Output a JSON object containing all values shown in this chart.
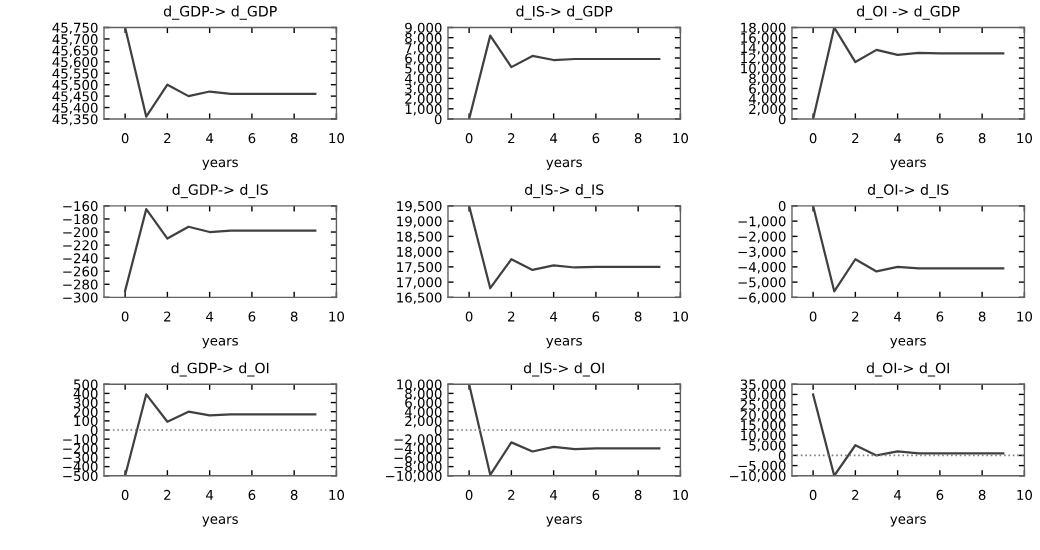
{
  "chart_data": [
    {
      "type": "line",
      "title": "d_GDP-> d_GDP",
      "xlabel": "years",
      "x": [
        0,
        1,
        2,
        3,
        4,
        5,
        6,
        7,
        8,
        9
      ],
      "values": [
        45750,
        45360,
        45500,
        45450,
        45470,
        45460,
        45460,
        45460,
        45460,
        45460
      ],
      "color": "#404040",
      "xlim": [
        -1,
        10
      ],
      "xticks": [
        0,
        2,
        4,
        6,
        8,
        10
      ],
      "ylim": [
        45350,
        45750
      ],
      "yticks": [
        {
          "value": 45350,
          "label": "45,350"
        },
        {
          "value": 45400,
          "label": "45,400"
        },
        {
          "value": 45450,
          "label": "45,450"
        },
        {
          "value": 45500,
          "label": "45,500"
        },
        {
          "value": 45550,
          "label": "45,550"
        },
        {
          "value": 45600,
          "label": "45,600"
        },
        {
          "value": 45650,
          "label": "45,650"
        },
        {
          "value": 45700,
          "label": "45,700"
        },
        {
          "value": 45750,
          "label": "45,750"
        }
      ],
      "grid": false,
      "legend": false
    },
    {
      "type": "line",
      "title": "d_IS-> d_GDP",
      "xlabel": "years",
      "x": [
        0,
        1,
        2,
        3,
        4,
        5,
        6,
        7,
        8,
        9
      ],
      "values": [
        0,
        8200,
        5100,
        6200,
        5800,
        5900,
        5900,
        5900,
        5900,
        5900
      ],
      "color": "#404040",
      "xlim": [
        -1,
        10
      ],
      "xticks": [
        0,
        2,
        4,
        6,
        8,
        10
      ],
      "ylim": [
        0,
        9000
      ],
      "yticks": [
        0,
        {
          "value": 1000,
          "label": "1,000"
        },
        {
          "value": 2000,
          "label": "2,000"
        },
        {
          "value": 3000,
          "label": "3,000"
        },
        {
          "value": 4000,
          "label": "4,000"
        },
        {
          "value": 5000,
          "label": "5,000"
        },
        {
          "value": 6000,
          "label": "6,000"
        },
        {
          "value": 7000,
          "label": "7,000"
        },
        {
          "value": 8000,
          "label": "8,000"
        },
        {
          "value": 9000,
          "label": "9,000"
        }
      ],
      "grid": false,
      "legend": false
    },
    {
      "type": "line",
      "title": "d_OI -> d_GDP",
      "xlabel": "years",
      "x": [
        0,
        1,
        2,
        3,
        4,
        5,
        6,
        7,
        8,
        9
      ],
      "values": [
        0,
        18000,
        11200,
        13600,
        12600,
        13000,
        12900,
        12900,
        12900,
        12900
      ],
      "color": "#404040",
      "xlim": [
        -1,
        10
      ],
      "xticks": [
        0,
        2,
        4,
        6,
        8,
        10
      ],
      "ylim": [
        0,
        18000
      ],
      "yticks": [
        0,
        {
          "value": 2000,
          "label": "2,000"
        },
        {
          "value": 4000,
          "label": "4,000"
        },
        {
          "value": 6000,
          "label": "6,000"
        },
        {
          "value": 8000,
          "label": "8,000"
        },
        {
          "value": 10000,
          "label": "10,000"
        },
        {
          "value": 12000,
          "label": "12,000"
        },
        {
          "value": 14000,
          "label": "14,000"
        },
        {
          "value": 16000,
          "label": "16,000"
        },
        {
          "value": 18000,
          "label": "18,000"
        }
      ],
      "grid": false,
      "legend": false
    },
    {
      "type": "line",
      "title": "d_GDP-> d_IS",
      "xlabel": "years",
      "x": [
        0,
        1,
        2,
        3,
        4,
        5,
        6,
        7,
        8,
        9
      ],
      "values": [
        -290,
        -165,
        -210,
        -192,
        -200,
        -198,
        -198,
        -198,
        -198,
        -198
      ],
      "color": "#404040",
      "xlim": [
        -1,
        10
      ],
      "xticks": [
        0,
        2,
        4,
        6,
        8,
        10
      ],
      "ylim": [
        -300,
        -160
      ],
      "yticks": [
        {
          "value": -300,
          "label": "−300"
        },
        {
          "value": -280,
          "label": "−280"
        },
        {
          "value": -260,
          "label": "−260"
        },
        {
          "value": -240,
          "label": "−240"
        },
        {
          "value": -220,
          "label": "−220"
        },
        {
          "value": -200,
          "label": "−200"
        },
        {
          "value": -180,
          "label": "−180"
        },
        {
          "value": -160,
          "label": "−160"
        }
      ],
      "grid": false,
      "legend": false
    },
    {
      "type": "line",
      "title": "d_IS-> d_IS",
      "xlabel": "years",
      "x": [
        0,
        1,
        2,
        3,
        4,
        5,
        6,
        7,
        8,
        9
      ],
      "values": [
        19500,
        16800,
        17750,
        17400,
        17550,
        17480,
        17500,
        17500,
        17500,
        17500
      ],
      "color": "#404040",
      "xlim": [
        -1,
        10
      ],
      "xticks": [
        0,
        2,
        4,
        6,
        8,
        10
      ],
      "ylim": [
        16500,
        19500
      ],
      "yticks": [
        {
          "value": 16500,
          "label": "16,500"
        },
        {
          "value": 17000,
          "label": "17,000"
        },
        {
          "value": 17500,
          "label": "17,500"
        },
        {
          "value": 18000,
          "label": "18,000"
        },
        {
          "value": 18500,
          "label": "18,500"
        },
        {
          "value": 19000,
          "label": "19,000"
        },
        {
          "value": 19500,
          "label": "19,500"
        }
      ],
      "grid": false,
      "legend": false
    },
    {
      "type": "line",
      "title": "d_OI-> d_IS",
      "xlabel": "years",
      "x": [
        0,
        1,
        2,
        3,
        4,
        5,
        6,
        7,
        8,
        9
      ],
      "values": [
        0,
        -5600,
        -3500,
        -4300,
        -4000,
        -4100,
        -4100,
        -4100,
        -4100,
        -4100
      ],
      "color": "#404040",
      "xlim": [
        -1,
        10
      ],
      "xticks": [
        0,
        2,
        4,
        6,
        8,
        10
      ],
      "ylim": [
        -6000,
        0
      ],
      "yticks": [
        {
          "value": -6000,
          "label": "−6,000"
        },
        {
          "value": -5000,
          "label": "−5,000"
        },
        {
          "value": -4000,
          "label": "−4,000"
        },
        {
          "value": -3000,
          "label": "−3,000"
        },
        {
          "value": -2000,
          "label": "−2,000"
        },
        {
          "value": -1000,
          "label": "−1,000"
        },
        0
      ],
      "grid": false,
      "legend": false
    },
    {
      "type": "line",
      "title": "d_GDP-> d_OI",
      "xlabel": "years",
      "x": [
        0,
        1,
        2,
        3,
        4,
        5,
        6,
        7,
        8,
        9
      ],
      "values": [
        -500,
        390,
        90,
        200,
        160,
        170,
        170,
        170,
        170,
        170
      ],
      "color": "#404040",
      "xlim": [
        -1,
        10
      ],
      "xticks": [
        0,
        2,
        4,
        6,
        8,
        10
      ],
      "ylim": [
        -500,
        500
      ],
      "yticks": [
        {
          "value": -500,
          "label": "−500"
        },
        {
          "value": -400,
          "label": "−400"
        },
        {
          "value": -300,
          "label": "−300"
        },
        {
          "value": -200,
          "label": "−200"
        },
        {
          "value": -100,
          "label": "−100"
        },
        0,
        100,
        200,
        300,
        400,
        500
      ],
      "ref_lines": [
        {
          "axis": "y",
          "value": 0,
          "line_style": "dotted",
          "color": "#808080"
        }
      ],
      "grid": false,
      "legend": false
    },
    {
      "type": "line",
      "title": "d_IS-> d_OI",
      "xlabel": "years",
      "x": [
        0,
        1,
        2,
        3,
        4,
        5,
        6,
        7,
        8,
        9
      ],
      "values": [
        10000,
        -9800,
        -2700,
        -4700,
        -3700,
        -4200,
        -4000,
        -4000,
        -4000,
        -4000
      ],
      "color": "#404040",
      "xlim": [
        -1,
        10
      ],
      "xticks": [
        0,
        2,
        4,
        6,
        8,
        10
      ],
      "ylim": [
        -10000,
        10000
      ],
      "yticks": [
        {
          "value": -10000,
          "label": "−10,000"
        },
        {
          "value": -8000,
          "label": "−8,000"
        },
        {
          "value": -6000,
          "label": "−6,000"
        },
        {
          "value": -4000,
          "label": "−4,000"
        },
        {
          "value": -2000,
          "label": "−2,000"
        },
        0,
        {
          "value": 2000,
          "label": "2,000"
        },
        {
          "value": 4000,
          "label": "4,000"
        },
        {
          "value": 6000,
          "label": "6,000"
        },
        {
          "value": 8000,
          "label": "8,000"
        },
        {
          "value": 10000,
          "label": "10,000"
        }
      ],
      "ref_lines": [
        {
          "axis": "y",
          "value": 0,
          "line_style": "dotted",
          "color": "#808080"
        }
      ],
      "grid": false,
      "legend": false
    },
    {
      "type": "line",
      "title": "d_OI-> d_OI",
      "xlabel": "years",
      "x": [
        0,
        1,
        2,
        3,
        4,
        5,
        6,
        7,
        8,
        9
      ],
      "values": [
        30000,
        -10000,
        5000,
        0,
        2000,
        1000,
        1000,
        1000,
        1000,
        1000
      ],
      "color": "#404040",
      "xlim": [
        -1,
        10
      ],
      "xticks": [
        0,
        2,
        4,
        6,
        8,
        10
      ],
      "ylim": [
        -10000,
        35000
      ],
      "yticks": [
        {
          "value": -10000,
          "label": "−10,000"
        },
        {
          "value": -5000,
          "label": "−5,000"
        },
        0,
        {
          "value": 5000,
          "label": "5,000"
        },
        {
          "value": 10000,
          "label": "10,000"
        },
        {
          "value": 15000,
          "label": "15,000"
        },
        {
          "value": 20000,
          "label": "20,000"
        },
        {
          "value": 25000,
          "label": "25,000"
        },
        {
          "value": 30000,
          "label": "30,000"
        },
        {
          "value": 35000,
          "label": "35,000"
        }
      ],
      "ref_lines": [
        {
          "axis": "y",
          "value": 0,
          "line_style": "dotted",
          "color": "#808080"
        }
      ],
      "grid": false,
      "legend": false
    }
  ]
}
